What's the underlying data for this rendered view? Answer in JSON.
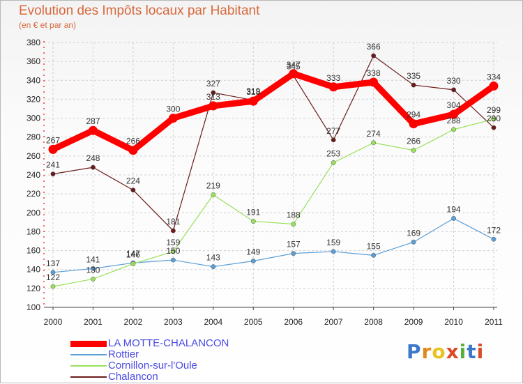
{
  "title": "Evolution des Impôts locaux par Habitant",
  "subtitle": "(en € et par an)",
  "logo_text": "Proxiti",
  "chart_data": {
    "type": "line",
    "x": [
      "2000",
      "2001",
      "2002",
      "2003",
      "2004",
      "2005",
      "2006",
      "2007",
      "2008",
      "2009",
      "2010",
      "2011"
    ],
    "ylim": [
      100,
      380
    ],
    "yticks": [
      "100",
      "120",
      "140",
      "160",
      "180",
      "200",
      "220",
      "240",
      "260",
      "280",
      "300",
      "320",
      "340",
      "360",
      "380"
    ],
    "grid": true,
    "legend_position": "bottom",
    "series": [
      {
        "name": "LA MOTTE-CHALANCON",
        "color": "#ff0000",
        "values": [
          267,
          287,
          266,
          300,
          313,
          318,
          347,
          333,
          338,
          294,
          304,
          334
        ]
      },
      {
        "name": "Rottier",
        "color": "#5b9fd6",
        "values": [
          137,
          141,
          147,
          150,
          143,
          149,
          157,
          159,
          155,
          169,
          194,
          172
        ]
      },
      {
        "name": "Cornillon-sur-l'Oule",
        "color": "#99e05a",
        "values": [
          122,
          130,
          146,
          159,
          219,
          191,
          188,
          253,
          274,
          266,
          288,
          299
        ]
      },
      {
        "name": "Chalancon",
        "color": "#6b1b1b",
        "values": [
          241,
          248,
          224,
          181,
          327,
          319,
          345,
          277,
          366,
          335,
          330,
          290
        ]
      }
    ]
  }
}
